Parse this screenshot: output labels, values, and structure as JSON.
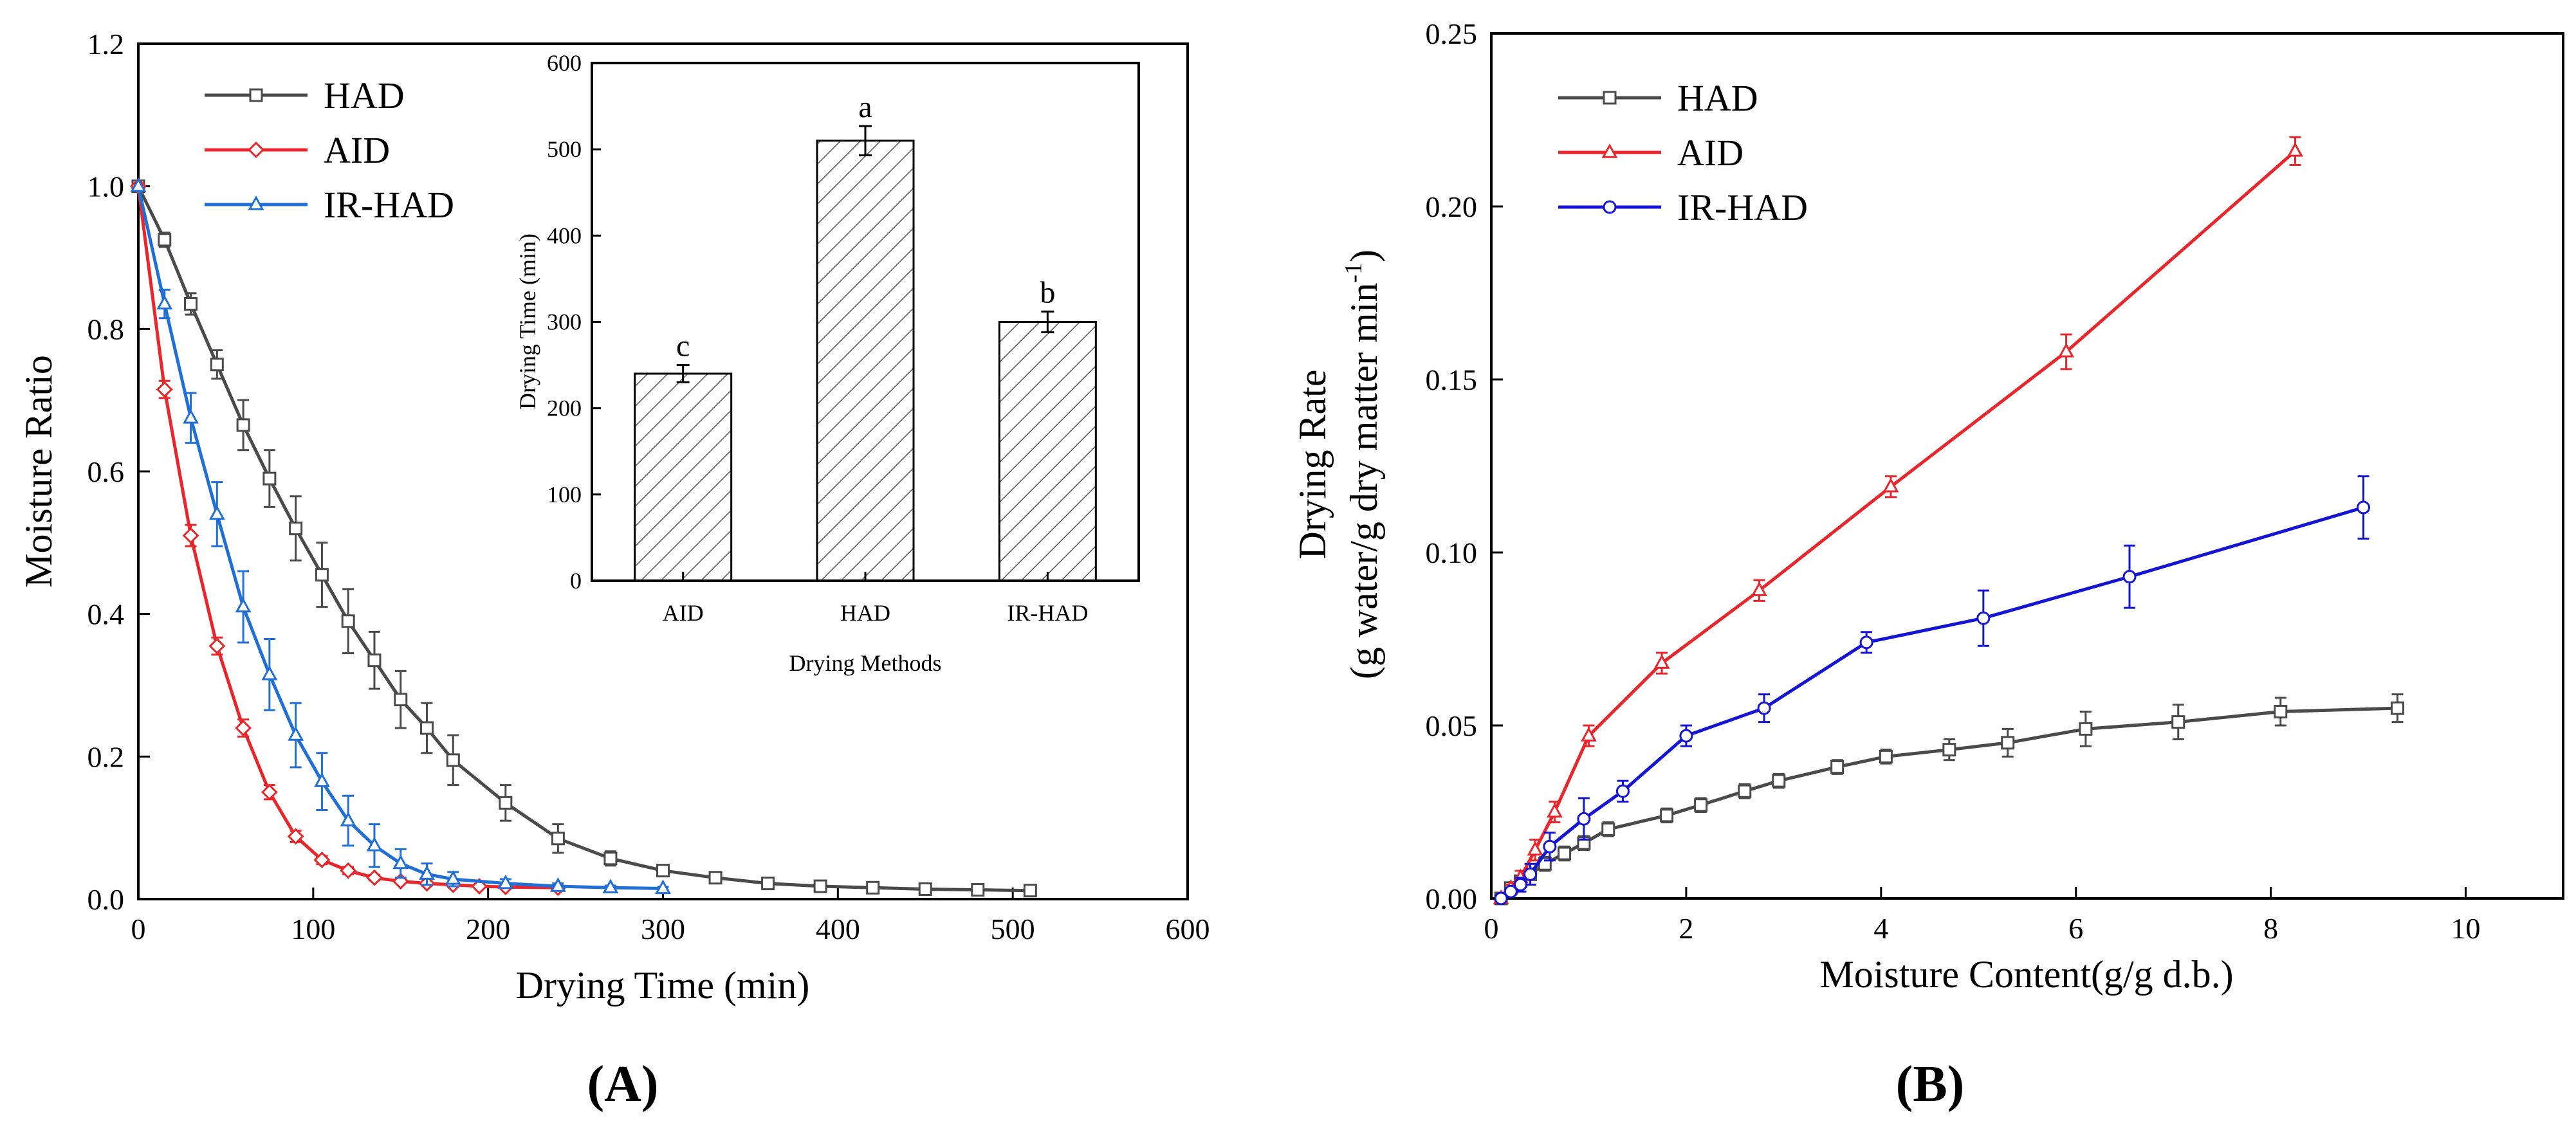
{
  "colors": {
    "HAD": "#4a4a4a",
    "AID": "#e8262b",
    "IR-HAD": "#1f6fd6",
    "IR-HAD-B": "#1414d4"
  },
  "chart_data": [
    {
      "panel": "A",
      "type": "line",
      "title": "",
      "panel_label": "(A)",
      "xlabel": "Drying Time (min)",
      "ylabel": "Moisture Ratio",
      "xlim": [
        0,
        600
      ],
      "ylim": [
        0,
        1.2
      ],
      "xticks": [
        "0",
        "100",
        "200",
        "300",
        "400",
        "500",
        "600"
      ],
      "yticks": [
        "0.0",
        "0.2",
        "0.4",
        "0.6",
        "0.8",
        "1.0",
        "1.2"
      ],
      "legend": "top-left",
      "series": [
        {
          "name": "HAD",
          "marker": "square",
          "x": [
            0,
            15,
            30,
            45,
            60,
            75,
            90,
            105,
            120,
            135,
            150,
            165,
            180,
            210,
            240,
            270,
            300,
            330,
            360,
            390,
            420,
            450,
            480,
            510
          ],
          "y": [
            1.0,
            0.925,
            0.835,
            0.75,
            0.665,
            0.59,
            0.52,
            0.455,
            0.39,
            0.335,
            0.28,
            0.24,
            0.195,
            0.135,
            0.085,
            0.057,
            0.04,
            0.03,
            0.022,
            0.018,
            0.016,
            0.014,
            0.013,
            0.012
          ],
          "err": [
            0,
            0.01,
            0.015,
            0.02,
            0.035,
            0.04,
            0.045,
            0.045,
            0.045,
            0.04,
            0.04,
            0.035,
            0.035,
            0.025,
            0.02,
            0.01,
            0.008,
            0.005,
            0.003,
            0.003,
            0.002,
            0.002,
            0.002,
            0.002
          ]
        },
        {
          "name": "AID",
          "marker": "diamond",
          "x": [
            0,
            15,
            30,
            45,
            60,
            75,
            90,
            105,
            120,
            135,
            150,
            165,
            180,
            195,
            210,
            240
          ],
          "y": [
            1.0,
            0.715,
            0.51,
            0.355,
            0.24,
            0.15,
            0.088,
            0.055,
            0.04,
            0.03,
            0.025,
            0.022,
            0.02,
            0.018,
            0.017,
            0.016
          ],
          "err": [
            0,
            0.012,
            0.015,
            0.012,
            0.012,
            0.01,
            0.008,
            0.006,
            0.005,
            0.004,
            0.003,
            0.003,
            0.003,
            0.002,
            0.002,
            0.002
          ]
        },
        {
          "name": "IR-HAD",
          "marker": "triangle",
          "x": [
            0,
            15,
            30,
            45,
            60,
            75,
            90,
            105,
            120,
            135,
            150,
            165,
            180,
            210,
            240,
            270,
            300
          ],
          "y": [
            1.0,
            0.835,
            0.675,
            0.54,
            0.41,
            0.315,
            0.23,
            0.165,
            0.11,
            0.075,
            0.05,
            0.035,
            0.028,
            0.022,
            0.018,
            0.016,
            0.015
          ],
          "err": [
            0,
            0.02,
            0.035,
            0.045,
            0.05,
            0.05,
            0.045,
            0.04,
            0.035,
            0.03,
            0.02,
            0.015,
            0.01,
            0.006,
            0.004,
            0.003,
            0.002
          ]
        }
      ],
      "inset": {
        "type": "bar",
        "categories": [
          "AID",
          "HAD",
          "IR-HAD"
        ],
        "values": [
          240,
          510,
          300
        ],
        "errors": [
          10,
          17,
          12
        ],
        "labels": [
          "c",
          "a",
          "b"
        ],
        "xlabel": "Drying Methods",
        "ylabel": "Drying Time (min)",
        "ylim": [
          0,
          600
        ],
        "yticks": [
          "0",
          "100",
          "200",
          "300",
          "400",
          "500",
          "600"
        ]
      }
    },
    {
      "panel": "B",
      "type": "line",
      "title": "",
      "panel_label": "(B)",
      "xlabel": "Moisture Content(g/g d.b.)",
      "ylabel": "Drying Rate",
      "ylabel2": "(g water/g dry matter min",
      "ylabel2_sup": "-1",
      "ylabel2_end": ")",
      "xlim": [
        0,
        11
      ],
      "ylim": [
        0,
        0.25
      ],
      "xticks": [
        "0",
        "2",
        "4",
        "6",
        "8",
        "10"
      ],
      "yticks": [
        "0.00",
        "0.05",
        "0.10",
        "0.15",
        "0.20",
        "0.25"
      ],
      "legend": "top-left",
      "series": [
        {
          "name": "HAD",
          "marker": "square",
          "x": [
            0.1,
            0.2,
            0.3,
            0.4,
            0.55,
            0.75,
            0.95,
            1.2,
            1.8,
            2.15,
            2.6,
            2.95,
            3.55,
            4.05,
            4.7,
            5.3,
            6.1,
            7.05,
            8.1,
            9.3
          ],
          "y": [
            0.0,
            0.003,
            0.005,
            0.007,
            0.01,
            0.013,
            0.016,
            0.02,
            0.024,
            0.027,
            0.031,
            0.034,
            0.038,
            0.041,
            0.043,
            0.045,
            0.049,
            0.051,
            0.054,
            0.055
          ],
          "err": [
            0,
            0.001,
            0.001,
            0.001,
            0.002,
            0.002,
            0.002,
            0.002,
            0.002,
            0.002,
            0.002,
            0.002,
            0.002,
            0.002,
            0.003,
            0.004,
            0.005,
            0.005,
            0.004,
            0.004
          ]
        },
        {
          "name": "AID",
          "marker": "triangle",
          "x": [
            0.1,
            0.2,
            0.3,
            0.45,
            0.65,
            1.0,
            1.75,
            2.75,
            4.1,
            5.9,
            8.25
          ],
          "y": [
            0.0,
            0.003,
            0.006,
            0.014,
            0.025,
            0.047,
            0.068,
            0.089,
            0.119,
            0.158,
            0.216
          ],
          "err": [
            0,
            0.001,
            0.002,
            0.003,
            0.003,
            0.003,
            0.003,
            0.003,
            0.003,
            0.005,
            0.004
          ]
        },
        {
          "name": "IR-HAD",
          "marker": "circle",
          "x": [
            0.1,
            0.2,
            0.3,
            0.4,
            0.6,
            0.95,
            1.35,
            2.0,
            2.8,
            3.85,
            5.05,
            6.55,
            8.95
          ],
          "y": [
            0.0,
            0.002,
            0.004,
            0.007,
            0.015,
            0.023,
            0.031,
            0.047,
            0.055,
            0.074,
            0.081,
            0.093,
            0.113
          ],
          "err": [
            0,
            0.001,
            0.002,
            0.003,
            0.004,
            0.006,
            0.003,
            0.003,
            0.004,
            0.003,
            0.008,
            0.009,
            0.009
          ]
        }
      ]
    }
  ]
}
